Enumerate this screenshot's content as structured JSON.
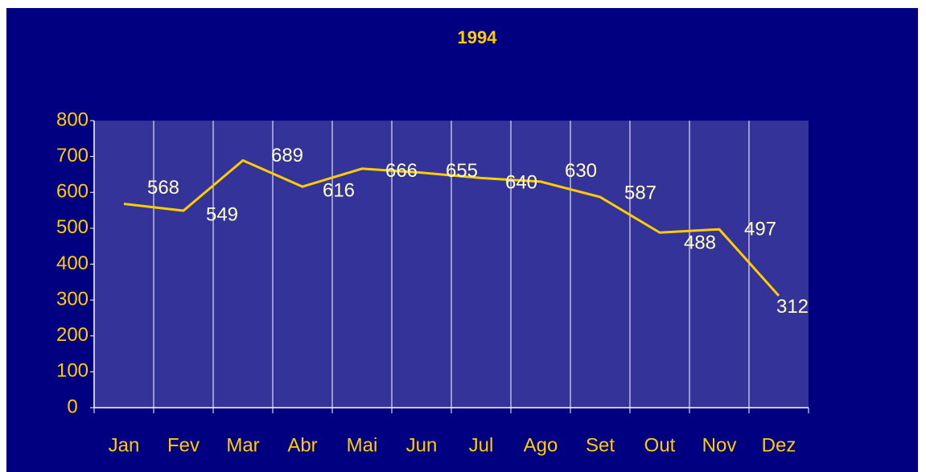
{
  "chart_data": {
    "type": "line",
    "title": "1994",
    "categories": [
      "Jan",
      "Fev",
      "Mar",
      "Abr",
      "Mai",
      "Jun",
      "Jul",
      "Ago",
      "Set",
      "Out",
      "Nov",
      "Dez"
    ],
    "series": [
      {
        "name": "1994",
        "color": "#ffcc00",
        "values": [
          568,
          549,
          689,
          616,
          666,
          655,
          640,
          630,
          587,
          488,
          497,
          312
        ]
      }
    ],
    "ylim": [
      0,
      800
    ],
    "yticks": [
      0,
      100,
      200,
      300,
      400,
      500,
      600,
      700,
      800
    ],
    "grid": true
  }
}
